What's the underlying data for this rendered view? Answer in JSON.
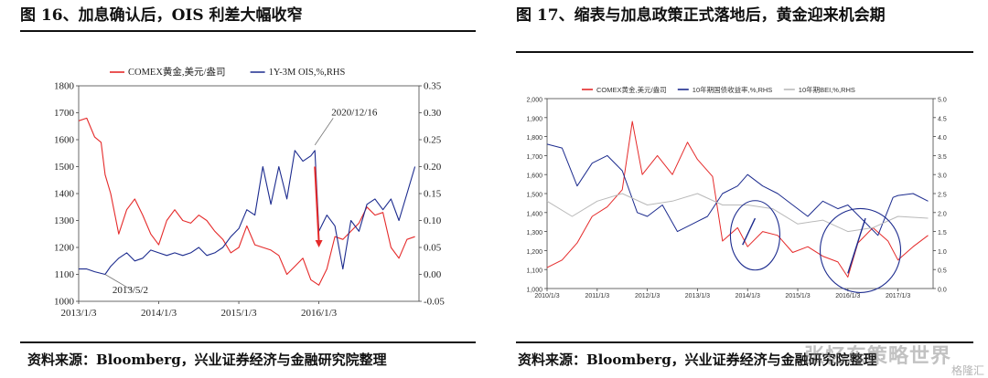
{
  "figures": [
    {
      "title": "图 16、加息确认后，OIS 利差大幅收窄",
      "source": "资料来源：Bloomberg，兴业证券经济与金融研究院整理"
    },
    {
      "title": "图 17、缩表与加息政策正式落地后，黄金迎来机会期",
      "source": "资料来源：Bloomberg，兴业证券经济与金融研究院整理"
    }
  ],
  "watermark": {
    "main": "张忆东策略世界",
    "corner": "格隆汇"
  },
  "colors": {
    "red": "#e52a2a",
    "blue": "#1c2b8e",
    "gray": "#b9b9b9"
  },
  "chart_data": [
    {
      "type": "line",
      "title": "",
      "x_ticks": [
        "2013/1/3",
        "2014/1/3",
        "2015/1/3",
        "2016/1/3"
      ],
      "x_range": [
        2013.0,
        2017.25
      ],
      "y_left": {
        "range": [
          1000,
          1800
        ],
        "ticks": [
          "1000",
          "1100",
          "1200",
          "1300",
          "1400",
          "1500",
          "1600",
          "1700",
          "1800"
        ]
      },
      "y_right": {
        "range": [
          -0.05,
          0.35
        ],
        "ticks": [
          "-0.05",
          "0.00",
          "0.05",
          "0.10",
          "0.15",
          "0.20",
          "0.25",
          "0.30",
          "0.35"
        ]
      },
      "legend_position": "top",
      "annotations": [
        {
          "label": "2020/12/16",
          "x": 2015.95,
          "y_right": 0.24
        },
        {
          "label": "2013/5/2",
          "x": 2013.33,
          "y_right": 0.0
        }
      ],
      "arrow": {
        "from": [
          2015.95,
          1500
        ],
        "to": [
          2016.0,
          1200
        ]
      },
      "series": [
        {
          "name": "COMEX黄金,美元/盎司",
          "axis": "left",
          "color": "#e52a2a",
          "x": [
            2013.0,
            2013.1,
            2013.2,
            2013.28,
            2013.33,
            2013.4,
            2013.5,
            2013.6,
            2013.7,
            2013.8,
            2013.9,
            2014.0,
            2014.1,
            2014.2,
            2014.3,
            2014.4,
            2014.5,
            2014.6,
            2014.7,
            2014.8,
            2014.9,
            2015.0,
            2015.1,
            2015.2,
            2015.3,
            2015.4,
            2015.5,
            2015.6,
            2015.7,
            2015.8,
            2015.9,
            2016.0,
            2016.1,
            2016.2,
            2016.3,
            2016.4,
            2016.5,
            2016.6,
            2016.7,
            2016.8,
            2016.9,
            2017.0,
            2017.1,
            2017.2
          ],
          "y": [
            1670,
            1680,
            1610,
            1590,
            1470,
            1400,
            1250,
            1340,
            1380,
            1320,
            1250,
            1210,
            1300,
            1340,
            1300,
            1290,
            1320,
            1300,
            1260,
            1230,
            1180,
            1200,
            1280,
            1210,
            1200,
            1190,
            1170,
            1100,
            1130,
            1160,
            1080,
            1060,
            1120,
            1240,
            1230,
            1260,
            1290,
            1350,
            1320,
            1330,
            1200,
            1160,
            1230,
            1240
          ]
        },
        {
          "name": "1Y-3M OIS,%,RHS",
          "axis": "right",
          "color": "#1c2b8e",
          "x": [
            2013.0,
            2013.1,
            2013.2,
            2013.33,
            2013.4,
            2013.5,
            2013.6,
            2013.7,
            2013.8,
            2013.9,
            2014.0,
            2014.1,
            2014.2,
            2014.3,
            2014.4,
            2014.5,
            2014.6,
            2014.7,
            2014.8,
            2014.9,
            2015.0,
            2015.1,
            2015.2,
            2015.3,
            2015.4,
            2015.5,
            2015.6,
            2015.7,
            2015.8,
            2015.9,
            2015.95,
            2016.0,
            2016.1,
            2016.2,
            2016.3,
            2016.4,
            2016.5,
            2016.6,
            2016.7,
            2016.8,
            2016.9,
            2017.0,
            2017.1,
            2017.2
          ],
          "y": [
            0.01,
            0.01,
            0.005,
            0.0,
            0.015,
            0.03,
            0.04,
            0.025,
            0.03,
            0.045,
            0.04,
            0.035,
            0.04,
            0.035,
            0.04,
            0.05,
            0.035,
            0.04,
            0.05,
            0.07,
            0.085,
            0.12,
            0.11,
            0.2,
            0.13,
            0.2,
            0.14,
            0.23,
            0.21,
            0.22,
            0.23,
            0.08,
            0.11,
            0.09,
            0.01,
            0.1,
            0.08,
            0.13,
            0.14,
            0.12,
            0.14,
            0.1,
            0.15,
            0.2
          ]
        }
      ]
    },
    {
      "type": "line",
      "title": "",
      "x_ticks": [
        "2010/1/3",
        "2011/1/3",
        "2012/1/3",
        "2013/1/3",
        "2014/1/3",
        "2015/1/3",
        "2016/1/3",
        "2017/1/3"
      ],
      "x_range": [
        2010.0,
        2017.7
      ],
      "y_left": {
        "range": [
          1000,
          2000
        ],
        "ticks": [
          "1,000",
          "1,100",
          "1,200",
          "1,300",
          "1,400",
          "1,500",
          "1,600",
          "1,700",
          "1,800",
          "1,900",
          "2,000"
        ]
      },
      "y_right": {
        "range": [
          0.0,
          5.0
        ],
        "ticks": [
          "0.0",
          "0.5",
          "1.0",
          "1.5",
          "2.0",
          "2.5",
          "3.0",
          "3.5",
          "4.0",
          "4.5",
          "5.0"
        ]
      },
      "legend_position": "top",
      "highlights": [
        {
          "shape": "ellipse",
          "cx": 2014.15,
          "cy": 1280
        },
        {
          "shape": "circle",
          "cx": 2016.25,
          "cy": 1200
        }
      ],
      "series": [
        {
          "name": "COMEX黄金,美元/盎司",
          "axis": "left",
          "color": "#e52a2a",
          "x": [
            2010.0,
            2010.3,
            2010.6,
            2010.9,
            2011.2,
            2011.5,
            2011.7,
            2011.9,
            2012.2,
            2012.5,
            2012.8,
            2013.0,
            2013.3,
            2013.5,
            2013.8,
            2014.0,
            2014.3,
            2014.6,
            2014.9,
            2015.2,
            2015.5,
            2015.8,
            2016.0,
            2016.2,
            2016.5,
            2016.8,
            2017.0,
            2017.3,
            2017.6
          ],
          "y": [
            1110,
            1150,
            1240,
            1380,
            1430,
            1520,
            1880,
            1600,
            1700,
            1600,
            1770,
            1680,
            1590,
            1250,
            1320,
            1220,
            1300,
            1280,
            1190,
            1220,
            1170,
            1140,
            1060,
            1240,
            1320,
            1250,
            1150,
            1220,
            1280
          ]
        },
        {
          "name": "10年期国债收益率,%,RHS",
          "axis": "right",
          "color": "#1c2b8e",
          "x": [
            2010.0,
            2010.3,
            2010.6,
            2010.9,
            2011.2,
            2011.5,
            2011.8,
            2012.0,
            2012.3,
            2012.6,
            2012.9,
            2013.2,
            2013.5,
            2013.8,
            2014.0,
            2014.3,
            2014.6,
            2014.9,
            2015.2,
            2015.5,
            2015.8,
            2016.0,
            2016.3,
            2016.6,
            2016.9,
            2017.0,
            2017.3,
            2017.6
          ],
          "y": [
            3.8,
            3.7,
            2.7,
            3.3,
            3.5,
            3.1,
            2.0,
            1.9,
            2.2,
            1.5,
            1.7,
            1.9,
            2.5,
            2.7,
            3.0,
            2.7,
            2.5,
            2.2,
            1.9,
            2.3,
            2.1,
            2.2,
            1.8,
            1.4,
            2.4,
            2.45,
            2.5,
            2.3
          ]
        },
        {
          "name": "10年期BEI,%,RHS",
          "axis": "right",
          "color": "#b9b9b9",
          "x": [
            2010.0,
            2010.5,
            2011.0,
            2011.5,
            2012.0,
            2012.5,
            2013.0,
            2013.5,
            2014.0,
            2014.5,
            2015.0,
            2015.5,
            2016.0,
            2016.5,
            2017.0,
            2017.6
          ],
          "y": [
            2.3,
            1.9,
            2.3,
            2.5,
            2.2,
            2.3,
            2.5,
            2.2,
            2.2,
            2.1,
            1.7,
            1.8,
            1.5,
            1.6,
            1.9,
            1.85
          ]
        }
      ]
    }
  ]
}
